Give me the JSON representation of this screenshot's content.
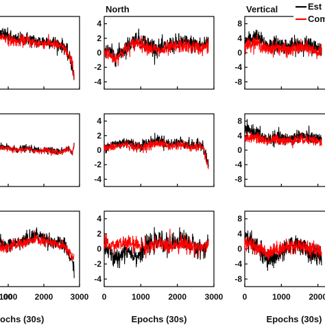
{
  "chart_data": {
    "type": "line",
    "x": {
      "min": 0,
      "max": 3000,
      "ticks": [
        0,
        1000,
        2000,
        3000
      ],
      "label": "Epochs (30s)"
    },
    "colors": {
      "estimated": "#000000",
      "computed": "#ff0000"
    },
    "legend": {
      "placement": "top-right",
      "entries": [
        "Est",
        "Com"
      ]
    },
    "columns": [
      {
        "title": "",
        "ylim": [
          -4,
          4
        ],
        "yticks": [],
        "xticks": [
          "00",
          "1000",
          "2000",
          "3000"
        ],
        "xlabel": "ochs (30s)"
      },
      {
        "title": "North",
        "ylim": [
          -5,
          5
        ],
        "yticks": [
          "4",
          "2",
          "0",
          "-2",
          "-4"
        ],
        "xticks": [
          "0",
          "1000",
          "2000",
          "3000"
        ],
        "xlabel": "Epochs (30s)"
      },
      {
        "title": "Vertical",
        "ylim": [
          -10,
          10
        ],
        "yticks": [
          "8",
          "4",
          "0",
          "-4",
          "-8"
        ],
        "xticks": [
          "0",
          "1000",
          "2000"
        ],
        "xlabel": "Epochs (30s)"
      }
    ],
    "panels": [
      {
        "row": 0,
        "col": 0,
        "series": [
          {
            "x": [
              0,
              300,
              600,
              900,
              1200,
              1500,
              1800,
              2100,
              2400,
              2600,
              2800,
              2850
            ],
            "y": [
              1.2,
              1.8,
              2.4,
              2.0,
              1.4,
              1.6,
              1.2,
              1.3,
              1.0,
              0.6,
              -1.5,
              -3.0
            ]
          },
          {
            "x": [
              0,
              300,
              600,
              900,
              1200,
              1500,
              1800,
              2100,
              2400,
              2600,
              2800,
              2850
            ],
            "y": [
              1.0,
              1.5,
              2.0,
              1.7,
              1.2,
              1.4,
              1.0,
              1.1,
              0.8,
              0.4,
              -1.2,
              -2.6
            ]
          }
        ]
      },
      {
        "row": 0,
        "col": 1,
        "series": [
          {
            "x": [
              0,
              300,
              600,
              900,
              1200,
              1500,
              1800,
              2100,
              2400,
              2700,
              2850
            ],
            "y": [
              0.5,
              -0.5,
              0.8,
              2.0,
              1.2,
              0.5,
              1.0,
              1.5,
              1.2,
              1.0,
              1.6
            ]
          },
          {
            "x": [
              0,
              300,
              600,
              900,
              1200,
              1500,
              1800,
              2100,
              2400,
              2700,
              2850
            ],
            "y": [
              0.2,
              -0.8,
              0.5,
              1.5,
              0.8,
              0.2,
              0.6,
              1.0,
              0.8,
              0.6,
              1.0
            ]
          }
        ]
      },
      {
        "row": 0,
        "col": 2,
        "series": [
          {
            "x": [
              0,
              300,
              600,
              900,
              1200,
              1500,
              1800,
              2100
            ],
            "y": [
              3.0,
              4.5,
              2.0,
              2.5,
              1.5,
              2.5,
              2.0,
              1.0
            ]
          },
          {
            "x": [
              0,
              300,
              600,
              900,
              1200,
              1500,
              1800,
              2100
            ],
            "y": [
              2.0,
              3.0,
              1.0,
              1.5,
              0.5,
              1.5,
              1.0,
              0.0
            ]
          }
        ]
      },
      {
        "row": 1,
        "col": 0,
        "series": [
          {
            "x": [
              0,
              300,
              600,
              900,
              1200,
              1500,
              1800,
              2100,
              2400,
              2700,
              2800,
              2850
            ],
            "y": [
              0.3,
              0.4,
              0.2,
              0.3,
              0.1,
              0.2,
              0.0,
              0.1,
              -0.2,
              0.2,
              -0.5,
              0.8
            ]
          },
          {
            "x": [
              0,
              300,
              600,
              900,
              1200,
              1500,
              1800,
              2100,
              2400,
              2700,
              2800,
              2850
            ],
            "y": [
              0.2,
              0.3,
              0.1,
              0.2,
              0.0,
              0.1,
              -0.1,
              0.0,
              -0.3,
              0.1,
              -0.4,
              0.6
            ]
          }
        ]
      },
      {
        "row": 1,
        "col": 1,
        "series": [
          {
            "x": [
              0,
              300,
              600,
              900,
              1200,
              1500,
              1800,
              2100,
              2400,
              2700,
              2850
            ],
            "y": [
              0.5,
              0.8,
              1.2,
              0.6,
              1.0,
              1.5,
              0.8,
              1.2,
              0.6,
              0.8,
              -2.0
            ]
          },
          {
            "x": [
              0,
              300,
              600,
              900,
              1200,
              1500,
              1800,
              2100,
              2400,
              2700,
              2850
            ],
            "y": [
              0.2,
              0.5,
              0.8,
              0.3,
              0.6,
              1.0,
              0.5,
              0.8,
              0.3,
              0.5,
              -2.5
            ]
          }
        ]
      },
      {
        "row": 1,
        "col": 2,
        "series": [
          {
            "x": [
              0,
              300,
              600,
              900,
              1200,
              1500,
              1800,
              2100
            ],
            "y": [
              5.5,
              5.0,
              3.0,
              3.5,
              3.0,
              4.0,
              3.5,
              2.5
            ]
          },
          {
            "x": [
              0,
              300,
              600,
              900,
              1200,
              1500,
              1800,
              2100
            ],
            "y": [
              3.5,
              3.5,
              2.5,
              3.0,
              2.5,
              3.0,
              3.0,
              2.0
            ]
          }
        ]
      },
      {
        "row": 2,
        "col": 0,
        "series": [
          {
            "x": [
              0,
              300,
              600,
              900,
              1200,
              1500,
              1800,
              2100,
              2400,
              2600,
              2800,
              2850
            ],
            "y": [
              0.5,
              0.8,
              1.2,
              0.3,
              0.6,
              1.0,
              1.5,
              1.0,
              0.6,
              0.3,
              -1.5,
              -2.0
            ]
          },
          {
            "x": [
              0,
              300,
              600,
              900,
              1200,
              1500,
              1800,
              2100,
              2400,
              2600,
              2800,
              2850
            ],
            "y": [
              0.3,
              0.5,
              0.8,
              0.1,
              0.4,
              0.7,
              1.0,
              0.7,
              0.4,
              0.2,
              -0.8,
              -1.0
            ]
          }
        ]
      },
      {
        "row": 2,
        "col": 1,
        "series": [
          {
            "x": [
              0,
              300,
              600,
              900,
              1200,
              1500,
              1800,
              2100,
              2400,
              2700,
              2850
            ],
            "y": [
              0.5,
              -1.5,
              0.0,
              -1.0,
              0.5,
              1.0,
              0.5,
              1.5,
              0.5,
              0.0,
              1.0
            ]
          },
          {
            "x": [
              0,
              300,
              600,
              900,
              1200,
              1500,
              1800,
              2100,
              2400,
              2700,
              2850
            ],
            "y": [
              0.5,
              0.5,
              0.8,
              0.5,
              0.3,
              0.6,
              0.4,
              0.8,
              0.3,
              0.2,
              0.5
            ]
          }
        ]
      },
      {
        "row": 2,
        "col": 2,
        "series": [
          {
            "x": [
              0,
              300,
              600,
              900,
              1200,
              1500,
              1800,
              2100
            ],
            "y": [
              3.0,
              1.0,
              -3.0,
              -2.0,
              0.5,
              1.5,
              -1.5,
              -2.0
            ]
          },
          {
            "x": [
              0,
              300,
              600,
              900,
              1200,
              1500,
              1800,
              2100
            ],
            "y": [
              1.5,
              0.5,
              -1.0,
              0.0,
              0.5,
              1.0,
              0.0,
              -0.5
            ]
          }
        ]
      }
    ]
  }
}
